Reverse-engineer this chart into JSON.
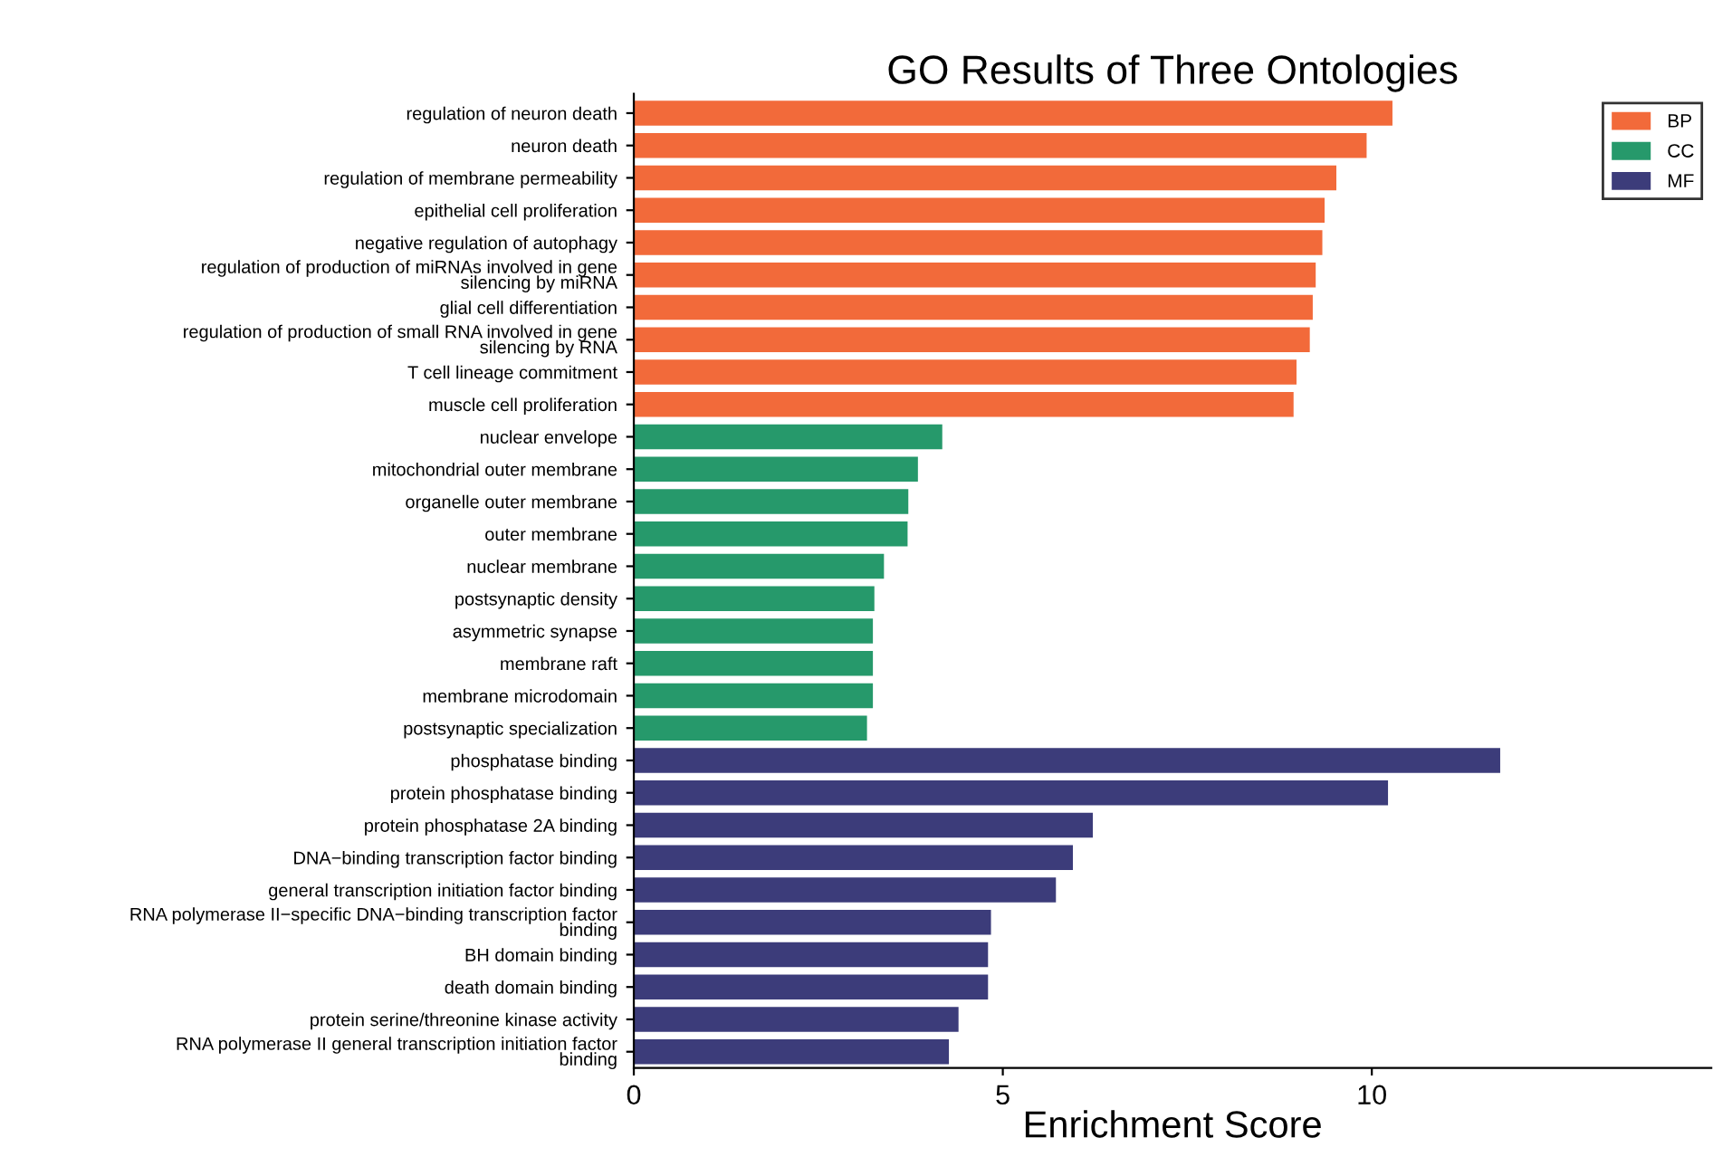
{
  "chart_data": {
    "type": "bar",
    "orientation": "horizontal",
    "title": "GO Results of Three Ontologies",
    "xlabel": "Enrichment Score",
    "categories": [
      "regulation of neuron death",
      "neuron death",
      "regulation of membrane permeability",
      "epithelial cell proliferation",
      "negative regulation of autophagy",
      "regulation of production of miRNAs involved in gene\nsilencing by miRNA",
      "glial cell differentiation",
      "regulation of production of small RNA involved in gene\nsilencing by RNA",
      "T cell lineage commitment",
      "muscle cell proliferation",
      "nuclear envelope",
      "mitochondrial outer membrane",
      "organelle outer membrane",
      "outer membrane",
      "nuclear membrane",
      "postsynaptic density",
      "asymmetric synapse",
      "membrane raft",
      "membrane microdomain",
      "postsynaptic specialization",
      "phosphatase binding",
      "protein phosphatase binding",
      "protein phosphatase 2A binding",
      "DNA−binding transcription factor binding",
      "general transcription initiation factor binding",
      "RNA polymerase II−specific DNA−binding transcription factor\nbinding",
      "BH domain binding",
      "death domain binding",
      "protein serine/threonine kinase activity",
      "RNA polymerase II general transcription initiation factor\nbinding"
    ],
    "series": [
      {
        "name": "BP",
        "color": "#f26a3a",
        "values": [
          10.29,
          9.94,
          9.53,
          9.37,
          9.34,
          9.25,
          9.21,
          9.17,
          8.99,
          8.95,
          null,
          null,
          null,
          null,
          null,
          null,
          null,
          null,
          null,
          null,
          null,
          null,
          null,
          null,
          null,
          null,
          null,
          null,
          null,
          null
        ]
      },
      {
        "name": "CC",
        "color": "#26996b",
        "values": [
          null,
          null,
          null,
          null,
          null,
          null,
          null,
          null,
          null,
          null,
          4.19,
          3.86,
          3.73,
          3.72,
          3.4,
          3.27,
          3.25,
          3.25,
          3.25,
          3.17,
          null,
          null,
          null,
          null,
          null,
          null,
          null,
          null,
          null,
          null
        ]
      },
      {
        "name": "MF",
        "color": "#3c3c7a",
        "values": [
          null,
          null,
          null,
          null,
          null,
          null,
          null,
          null,
          null,
          null,
          null,
          null,
          null,
          null,
          null,
          null,
          null,
          null,
          null,
          null,
          11.75,
          10.23,
          6.23,
          5.96,
          5.73,
          4.85,
          4.81,
          4.81,
          4.41,
          4.28
        ]
      }
    ],
    "xlim": [
      0,
      14.6
    ],
    "xticks": [
      0,
      5,
      10
    ],
    "grid": false,
    "legend": "top right"
  }
}
